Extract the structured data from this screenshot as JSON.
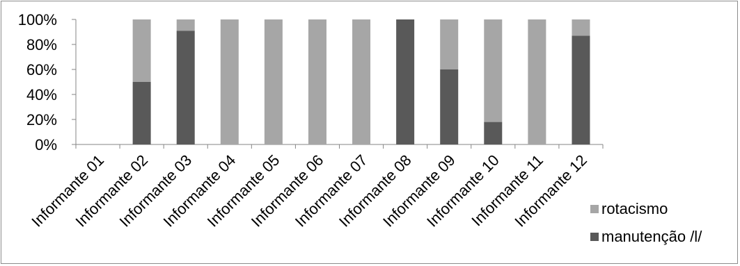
{
  "chart_data": {
    "type": "bar",
    "stacked": "percent",
    "categories": [
      "Informante 01",
      "Informante 02",
      "Informante 03",
      "Informante 04",
      "Informante 05",
      "Informante 06",
      "Informante 07",
      "Informante 08",
      "Informante 09",
      "Informante 10",
      "Informante 11",
      "Informante 12"
    ],
    "series": [
      {
        "name": "manutenção /l/",
        "color": "#595959",
        "values": [
          0,
          50,
          91,
          0,
          0,
          0,
          0,
          100,
          60,
          18,
          0,
          87
        ]
      },
      {
        "name": "rotacismo",
        "color": "#a6a6a6",
        "values": [
          0,
          50,
          9,
          100,
          100,
          100,
          100,
          0,
          40,
          82,
          100,
          13
        ]
      }
    ],
    "y_ticks": [
      "0%",
      "20%",
      "40%",
      "60%",
      "80%",
      "100%"
    ],
    "ylim": [
      0,
      100
    ],
    "grid": false,
    "legend_position": "bottom-right",
    "legend": [
      {
        "label": "rotacismo",
        "color": "#a6a6a6"
      },
      {
        "label": "manutenção /l/",
        "color": "#595959"
      }
    ]
  }
}
